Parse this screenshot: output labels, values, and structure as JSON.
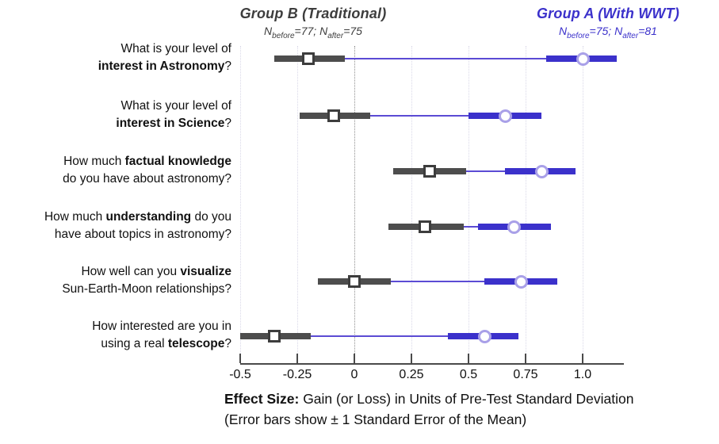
{
  "colors": {
    "group_b": "#4d4d4d",
    "group_a": "#3b31cb",
    "connector": "#5b4bd4",
    "circle_marker_border": "#a9a0e8",
    "square_marker_border": "#3d3d3d",
    "grid_minor": "#d9d8e8",
    "grid_zero": "#8f8f8f",
    "axis": "#4a4a4a",
    "text": "#111111"
  },
  "header": {
    "group_b": {
      "title": "Group B (Traditional)",
      "subtitle_segments": [
        {
          "t": "N"
        },
        {
          "t": "before",
          "s": true
        },
        {
          "t": "=77; "
        },
        {
          "t": "N"
        },
        {
          "t": "after",
          "s": true
        },
        {
          "t": "=75"
        }
      ]
    },
    "group_a": {
      "title": "Group A (With WWT)",
      "subtitle_segments": [
        {
          "t": "N"
        },
        {
          "t": "before",
          "s": true
        },
        {
          "t": "=75; "
        },
        {
          "t": "N"
        },
        {
          "t": "after",
          "s": true
        },
        {
          "t": "=81"
        }
      ]
    }
  },
  "caption": {
    "line1_segments": [
      {
        "t": "Effect Size:",
        "b": true
      },
      {
        "t": " Gain (or Loss) in Units of Pre-Test Standard Deviation"
      }
    ],
    "line2_segments": [
      {
        "t": "(Error bars show ± 1 Standard Error of the Mean)"
      }
    ]
  },
  "chart_data": {
    "type": "scatter",
    "subtype": "horizontal-dot-plot-with-error-bars",
    "xlabel": "Effect Size: Gain (or Loss) in Units of Pre-Test Standard Deviation (Error bars show ± 1 Standard Error of the Mean)",
    "xlim": [
      -0.5,
      1.18
    ],
    "tick_values": [
      -0.5,
      -0.25,
      0,
      0.25,
      0.5,
      0.75,
      1.0
    ],
    "tick_labels": [
      "-0.5",
      "-0.25",
      "0",
      "0.25",
      "0.5",
      "0.75",
      "1.0"
    ],
    "grid": "dotted-vertical-at-ticks",
    "zero_reference_line": true,
    "legend_position": "top-as-column-headers",
    "categories_rich": [
      [
        [
          {
            "t": "What is your level of"
          }
        ],
        [
          {
            "t": "interest in Astronomy",
            "b": true
          },
          {
            "t": "?"
          }
        ]
      ],
      [
        [
          {
            "t": "What is your level of"
          }
        ],
        [
          {
            "t": "interest in Science",
            "b": true
          },
          {
            "t": "?"
          }
        ]
      ],
      [
        [
          {
            "t": "How much "
          },
          {
            "t": "factual knowledge",
            "b": true
          }
        ],
        [
          {
            "t": "do you have about astronomy?"
          }
        ]
      ],
      [
        [
          {
            "t": "How much "
          },
          {
            "t": "understanding",
            "b": true
          },
          {
            "t": " do you"
          }
        ],
        [
          {
            "t": "have about topics in astronomy?"
          }
        ]
      ],
      [
        [
          {
            "t": "How well can you "
          },
          {
            "t": "visualize",
            "b": true
          }
        ],
        [
          {
            "t": "Sun-Earth-Moon relationships?"
          }
        ]
      ],
      [
        [
          {
            "t": "How interested are you in"
          }
        ],
        [
          {
            "t": "using a real "
          },
          {
            "t": "telescope",
            "b": true
          },
          {
            "t": "?"
          }
        ]
      ]
    ],
    "categories_plain": [
      "What is your level of interest in Astronomy?",
      "What is your level of interest in Science?",
      "How much factual knowledge do you have about astronomy?",
      "How much understanding do you have about topics in astronomy?",
      "How well can you visualize Sun-Earth-Moon relationships?",
      "How interested are you in using a real telescope?"
    ],
    "series": [
      {
        "name": "Group B (Traditional)",
        "n_before": 77,
        "n_after": 75,
        "marker": "square",
        "color": "#4d4d4d",
        "values": [
          {
            "mean": -0.2,
            "lo": -0.35,
            "hi": -0.04
          },
          {
            "mean": -0.09,
            "lo": -0.24,
            "hi": 0.07
          },
          {
            "mean": 0.33,
            "lo": 0.17,
            "hi": 0.49
          },
          {
            "mean": 0.31,
            "lo": 0.15,
            "hi": 0.48
          },
          {
            "mean": 0.0,
            "lo": -0.16,
            "hi": 0.16
          },
          {
            "mean": -0.35,
            "lo": -0.5,
            "hi": -0.19
          }
        ]
      },
      {
        "name": "Group A (With WWT)",
        "n_before": 75,
        "n_after": 81,
        "marker": "circle",
        "color": "#3b31cb",
        "values": [
          {
            "mean": 1.0,
            "lo": 0.84,
            "hi": 1.15
          },
          {
            "mean": 0.66,
            "lo": 0.5,
            "hi": 0.82
          },
          {
            "mean": 0.82,
            "lo": 0.66,
            "hi": 0.97
          },
          {
            "mean": 0.7,
            "lo": 0.54,
            "hi": 0.86
          },
          {
            "mean": 0.73,
            "lo": 0.57,
            "hi": 0.89
          },
          {
            "mean": 0.57,
            "lo": 0.41,
            "hi": 0.72
          }
        ]
      }
    ],
    "error_bar_note": "± 1 Standard Error of the Mean",
    "connector_note": "thin line joins Group B upper bound to Group A lower bound per row"
  }
}
